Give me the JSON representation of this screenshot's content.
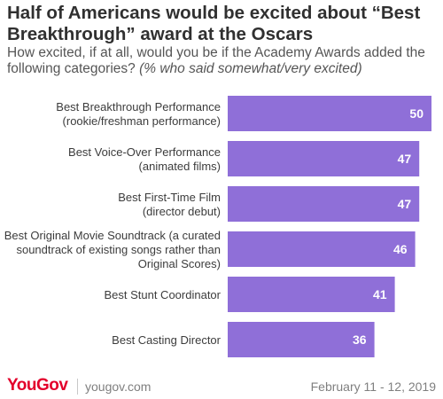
{
  "header": {
    "title": "Half of Americans would be excited about “Best Breakthrough” award at the Oscars",
    "question": "How excited, if at all, would you be if the Academy Awards added the following categories?",
    "note": "(% who said somewhat/very excited)"
  },
  "chart_data": {
    "type": "bar",
    "orientation": "horizontal",
    "title": "Half of Americans would be excited about “Best Breakthrough” award at the Oscars",
    "categories": [
      [
        "Best Breakthrough Performance",
        "(rookie/freshman performance)"
      ],
      [
        "Best Voice-Over Performance",
        "(animated films)"
      ],
      [
        "Best First-Time Film",
        "(director debut)"
      ],
      [
        "Best Original Movie Soundtrack (a curated",
        "soundtrack of existing songs rather than",
        "Original Scores)"
      ],
      [
        "Best Stunt Coordinator"
      ],
      [
        "Best Casting Director"
      ]
    ],
    "values": [
      50,
      47,
      47,
      46,
      41,
      36
    ],
    "xlim": [
      0,
      50
    ],
    "grid": false,
    "legend": "none",
    "bar_color": "#8f6fd8",
    "label_color": "#ffffff"
  },
  "footer": {
    "brand": "YouGov",
    "site": "yougov.com",
    "date": "February 11 - 12, 2019"
  },
  "colors": {
    "title": "#303030",
    "brand": "#e3002b",
    "muted": "#7f7f7f"
  }
}
